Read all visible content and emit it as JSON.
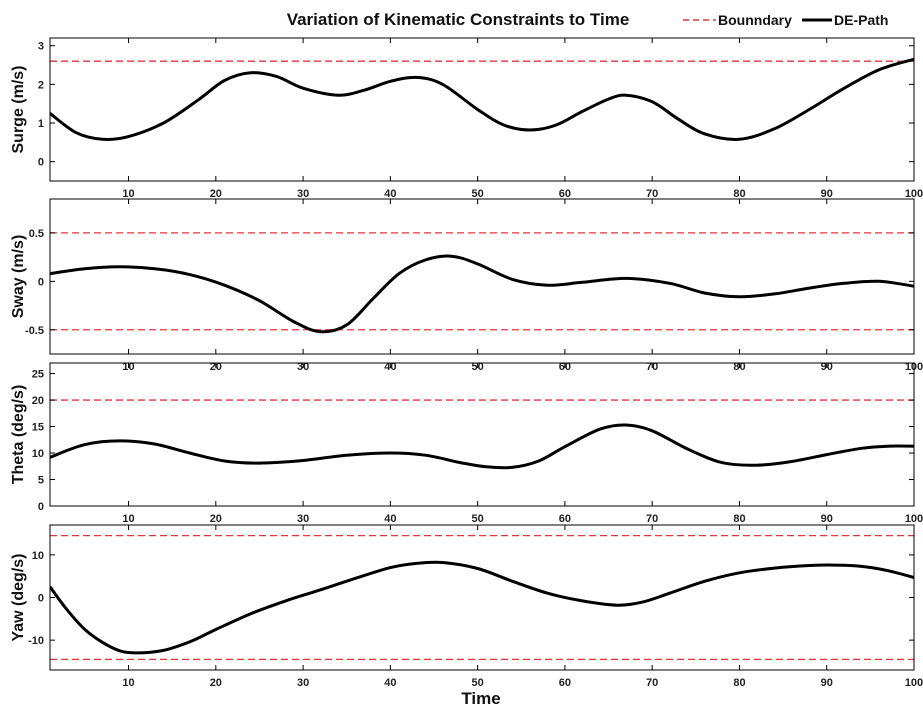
{
  "title": "Variation of Kinematic Constraints to Time",
  "legend": {
    "boundary_label": "Bounndary",
    "path_label": "DE-Path",
    "boundary_color": "#e8323c",
    "path_color": "#000000",
    "placement": "top-right"
  },
  "xlabel": "Time",
  "colors": {
    "boundary": "#e8323c",
    "path": "#000000",
    "axes": "#000000"
  },
  "chart_data": [
    {
      "type": "line",
      "ylabel": "Surge (m/s)",
      "xlim": [
        1,
        100
      ],
      "ylim": [
        -0.5,
        3.2
      ],
      "xticks": [
        10,
        20,
        30,
        40,
        50,
        60,
        70,
        80,
        90,
        100
      ],
      "yticks": [
        0,
        1,
        2,
        3
      ],
      "boundaries": [
        2.6
      ],
      "series": [
        {
          "name": "DE-Path",
          "x": [
            1,
            4,
            7,
            10,
            14,
            18,
            21,
            24,
            27,
            30,
            34,
            37,
            40,
            43,
            46,
            50,
            53,
            56,
            59,
            62,
            65,
            67,
            70,
            73,
            76,
            80,
            84,
            88,
            92,
            96,
            100
          ],
          "y": [
            1.25,
            0.75,
            0.58,
            0.65,
            1.0,
            1.6,
            2.1,
            2.3,
            2.2,
            1.9,
            1.72,
            1.85,
            2.08,
            2.18,
            2.0,
            1.35,
            0.95,
            0.82,
            0.95,
            1.3,
            1.62,
            1.72,
            1.55,
            1.1,
            0.72,
            0.58,
            0.85,
            1.35,
            1.9,
            2.38,
            2.65
          ]
        }
      ]
    },
    {
      "type": "line",
      "ylabel": "Sway (m/s)",
      "xlim": [
        1,
        100
      ],
      "ylim": [
        -0.75,
        0.85
      ],
      "xticks": [
        10,
        20,
        30,
        40,
        50,
        60,
        70,
        80,
        90,
        100
      ],
      "yticks": [
        -0.5,
        0,
        0.5
      ],
      "ytick_labels": [
        "-0.5",
        "0",
        "0.5"
      ],
      "boundaries": [
        0.5,
        -0.5
      ],
      "series": [
        {
          "name": "DE-Path",
          "x": [
            1,
            5,
            9,
            13,
            17,
            21,
            25,
            29,
            32,
            35,
            38,
            41,
            44,
            47,
            50,
            54,
            58,
            62,
            67,
            72,
            76,
            80,
            84,
            88,
            92,
            96,
            100
          ],
          "y": [
            0.08,
            0.13,
            0.15,
            0.13,
            0.07,
            -0.04,
            -0.2,
            -0.42,
            -0.52,
            -0.45,
            -0.18,
            0.08,
            0.22,
            0.26,
            0.18,
            0.02,
            -0.04,
            -0.01,
            0.03,
            -0.02,
            -0.12,
            -0.16,
            -0.13,
            -0.07,
            -0.02,
            0.0,
            -0.05
          ]
        }
      ]
    },
    {
      "type": "line",
      "ylabel": "Theta (deg/s)",
      "xlim": [
        1,
        100
      ],
      "ylim": [
        0,
        27
      ],
      "xticks": [
        10,
        20,
        30,
        40,
        50,
        60,
        70,
        80,
        90,
        100
      ],
      "yticks": [
        0,
        5,
        10,
        15,
        20,
        25
      ],
      "boundaries": [
        20
      ],
      "series": [
        {
          "name": "DE-Path",
          "x": [
            1,
            5,
            9,
            13,
            17,
            21,
            25,
            30,
            35,
            40,
            44,
            48,
            51,
            54,
            57,
            60,
            64,
            67,
            70,
            74,
            78,
            82,
            86,
            90,
            94,
            97,
            100
          ],
          "y": [
            9.2,
            11.6,
            12.3,
            11.7,
            10.0,
            8.5,
            8.1,
            8.6,
            9.6,
            10.0,
            9.6,
            8.2,
            7.4,
            7.3,
            8.5,
            11.2,
            14.5,
            15.3,
            14.2,
            10.8,
            8.2,
            7.7,
            8.4,
            9.7,
            10.9,
            11.3,
            11.3
          ]
        }
      ]
    },
    {
      "type": "line",
      "ylabel": "Yaw (deg/s)",
      "xlim": [
        1,
        100
      ],
      "ylim": [
        -17,
        17
      ],
      "xticks": [
        10,
        20,
        30,
        40,
        50,
        60,
        70,
        80,
        90,
        100
      ],
      "yticks": [
        -10,
        0,
        10
      ],
      "boundaries": [
        14.5,
        -14.5
      ],
      "series": [
        {
          "name": "DE-Path",
          "x": [
            1,
            3,
            5,
            7,
            9,
            11,
            14,
            17,
            20,
            24,
            28,
            32,
            36,
            40,
            43,
            46,
            50,
            54,
            58,
            62,
            66,
            69,
            72,
            76,
            80,
            84,
            88,
            91,
            94,
            97,
            100
          ],
          "y": [
            2.5,
            -3.0,
            -7.5,
            -10.5,
            -12.5,
            -13.0,
            -12.4,
            -10.4,
            -7.5,
            -3.8,
            -0.8,
            1.8,
            4.5,
            7.0,
            8.0,
            8.2,
            6.8,
            3.8,
            1.0,
            -0.8,
            -1.8,
            -1.0,
            1.0,
            3.8,
            5.8,
            6.9,
            7.5,
            7.6,
            7.3,
            6.3,
            4.7
          ]
        }
      ]
    }
  ]
}
